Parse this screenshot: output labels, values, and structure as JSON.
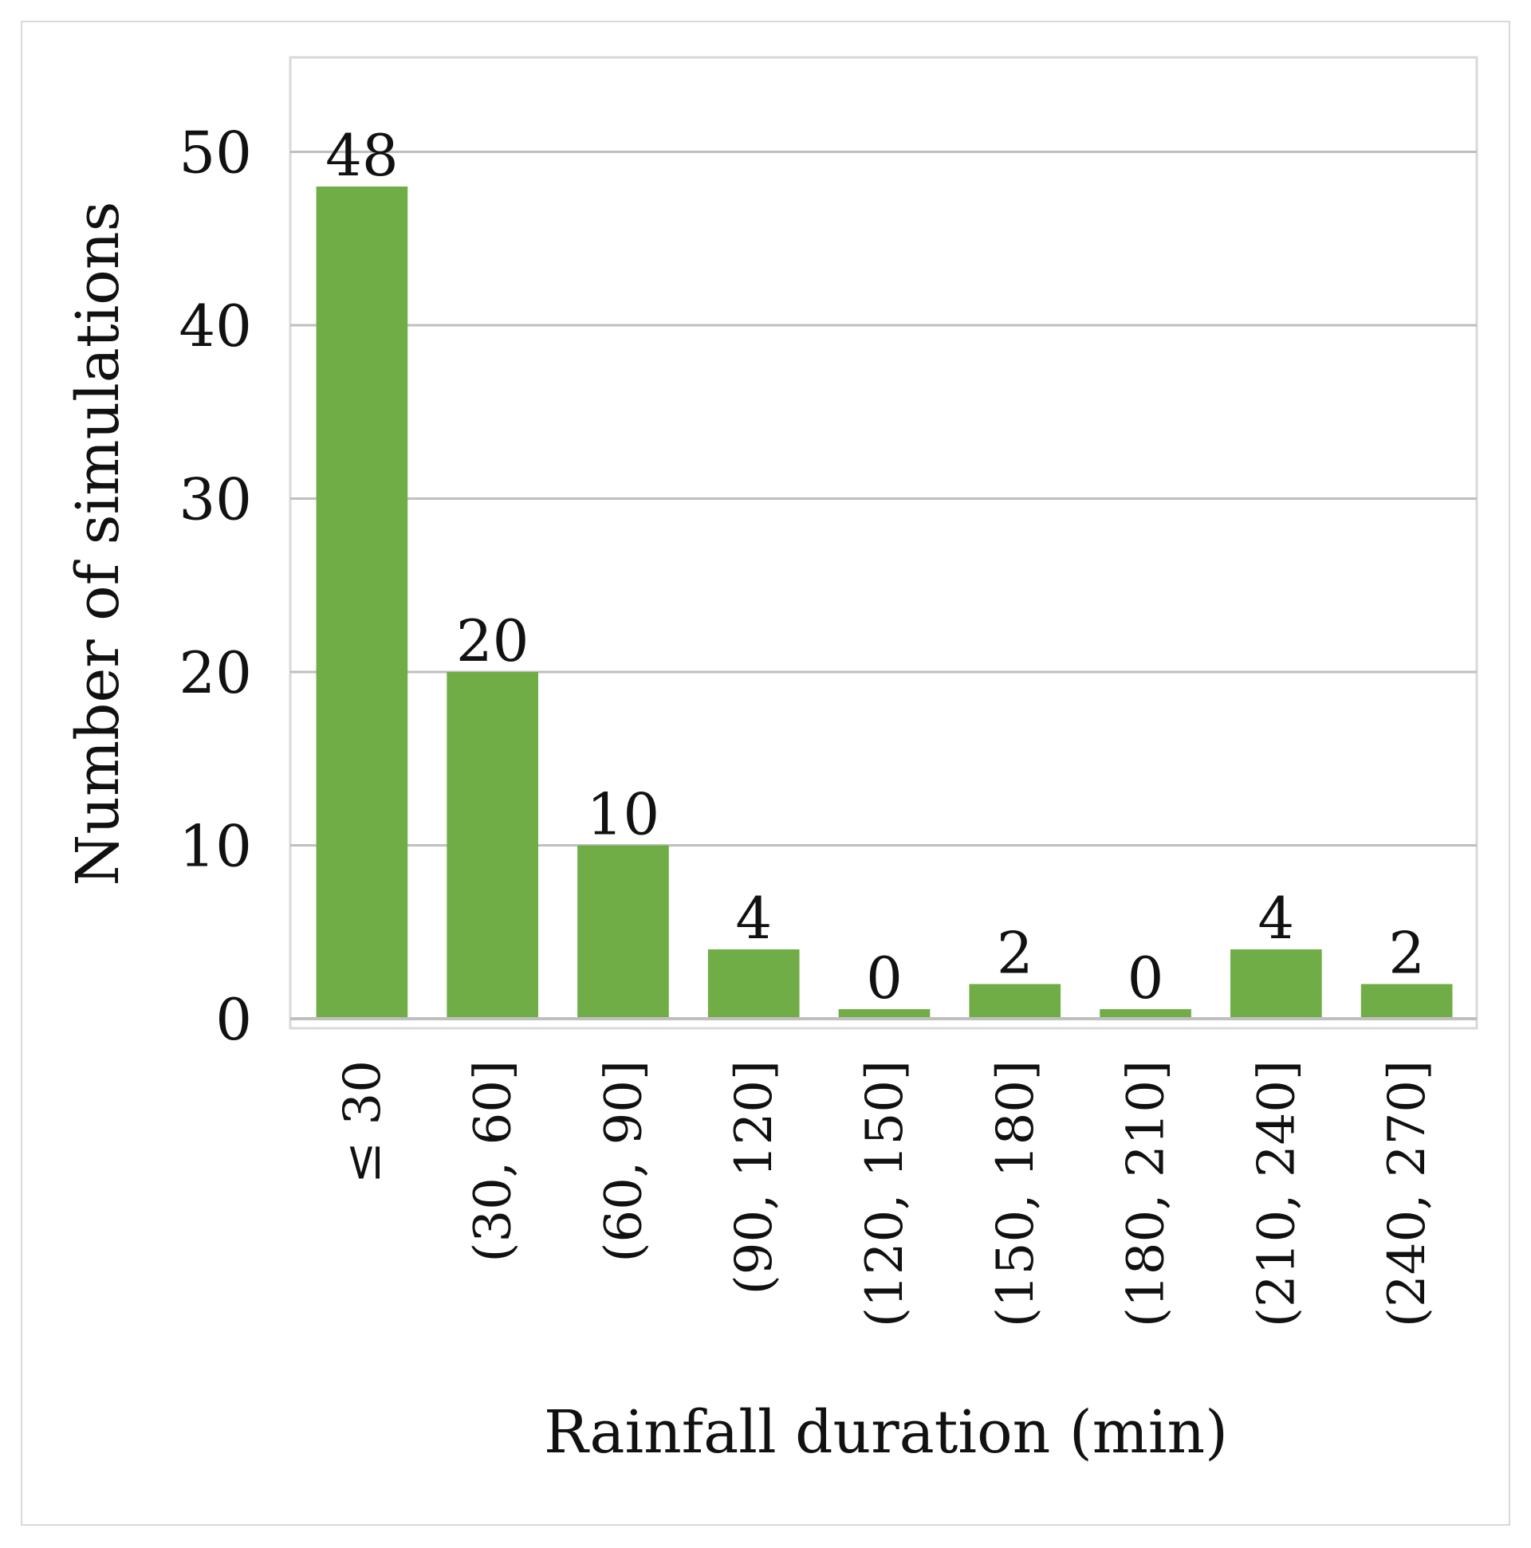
{
  "chart_data": {
    "type": "bar",
    "title": "",
    "xlabel": "Rainfall duration (min)",
    "ylabel": "Number of simulations",
    "categories": [
      "≤ 30",
      "(30, 60]",
      "(60, 90]",
      "(90, 120]",
      "(120, 150]",
      "(150, 180]",
      "(180, 210]",
      "(210, 240]",
      "(240, 270]"
    ],
    "values": [
      48,
      20,
      10,
      4,
      0,
      2,
      0,
      4,
      2
    ],
    "data_labels": [
      "48",
      "20",
      "10",
      "4",
      "0",
      "2",
      "0",
      "4",
      "2"
    ],
    "ylim": [
      0,
      55
    ],
    "yticks": [
      0,
      10,
      20,
      30,
      40,
      50
    ],
    "ytick_labels": [
      "0",
      "10",
      "20",
      "30",
      "40",
      "50"
    ],
    "grid": true,
    "legend": "none",
    "bar_color": "#70ad47",
    "grid_color": "#bfbfbf"
  }
}
